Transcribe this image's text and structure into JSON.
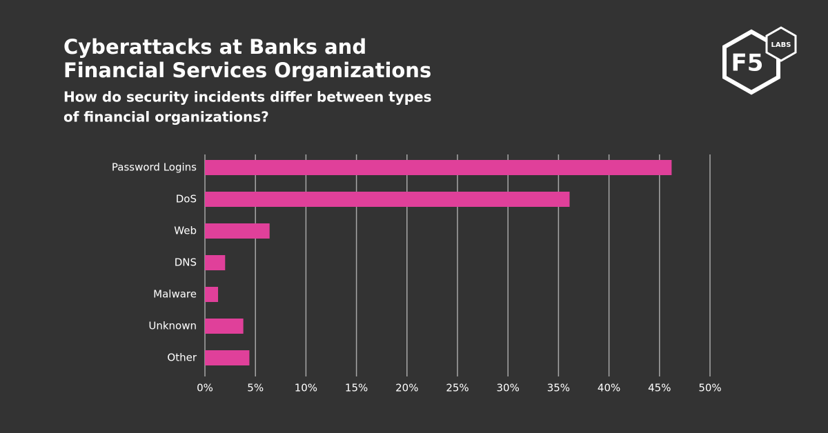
{
  "chart_data": {
    "type": "barh",
    "title": [
      "Cyberattacks at Banks and",
      "Financial Services Organizations"
    ],
    "subtitle": [
      "How do security incidents differ between types",
      "of financial organizations?"
    ],
    "categories": [
      "Password Logins",
      "DoS",
      "Web",
      "DNS",
      "Malware",
      "Unknown",
      "Other"
    ],
    "values": [
      46.2,
      36.1,
      6.4,
      2.0,
      1.3,
      3.8,
      4.4
    ],
    "color": "#e0409a",
    "xlim": [
      0,
      50
    ],
    "xticks": [
      {
        "value": 0,
        "label": "0%"
      },
      {
        "value": 5,
        "label": "5%"
      },
      {
        "value": 10,
        "label": "10%"
      },
      {
        "value": 15,
        "label": "15%"
      },
      {
        "value": 20,
        "label": "20%"
      },
      {
        "value": 25,
        "label": "25%"
      },
      {
        "value": 30,
        "label": "30%"
      },
      {
        "value": 35,
        "label": "35%"
      },
      {
        "value": 40,
        "label": "40%"
      },
      {
        "value": 45,
        "label": "45%"
      },
      {
        "value": 50,
        "label": "50%"
      }
    ],
    "grid": true
  },
  "logo": {
    "main": "F5",
    "badge": "LABS"
  }
}
